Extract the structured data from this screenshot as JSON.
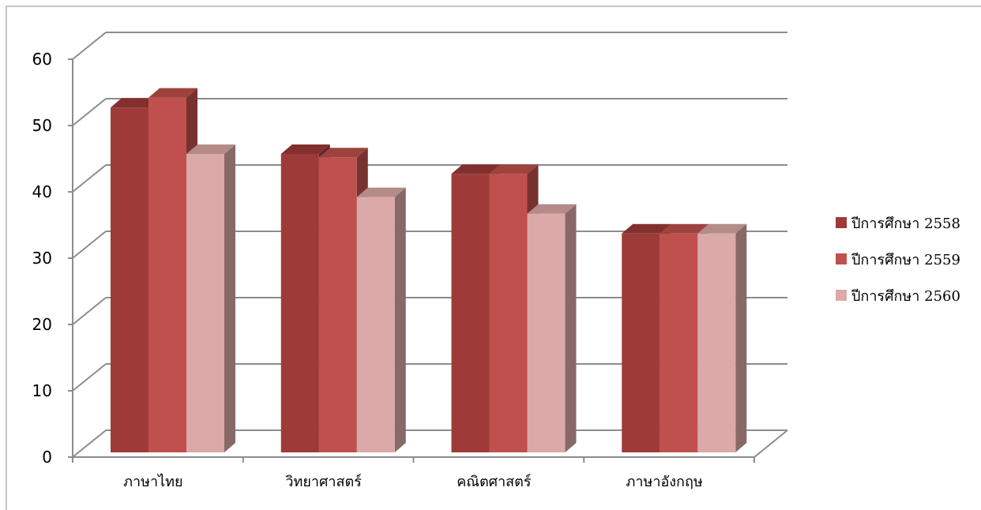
{
  "chart_data": {
    "type": "bar",
    "style": "3d-clustered-column",
    "categories": [
      "ภาษาไทย",
      "วิทยาศาสตร์",
      "คณิตศาสตร์",
      "ภาษาอังกฤษ"
    ],
    "series": [
      {
        "name": "ปีการศึกษา 2558",
        "color": "#9e3b38",
        "values": [
          52,
          45,
          42,
          33
        ]
      },
      {
        "name": "ปีการศึกษา 2559",
        "color": "#c0504d",
        "values": [
          53.5,
          44.5,
          42,
          33
        ]
      },
      {
        "name": "ปีการศึกษา 2560",
        "color": "#dba9a7",
        "values": [
          45,
          38.5,
          36,
          33
        ]
      }
    ],
    "y_ticks": [
      "0",
      "10",
      "20",
      "30",
      "40",
      "50",
      "60"
    ],
    "ylim": [
      0,
      60
    ],
    "grid": true,
    "legend_position": "right"
  }
}
